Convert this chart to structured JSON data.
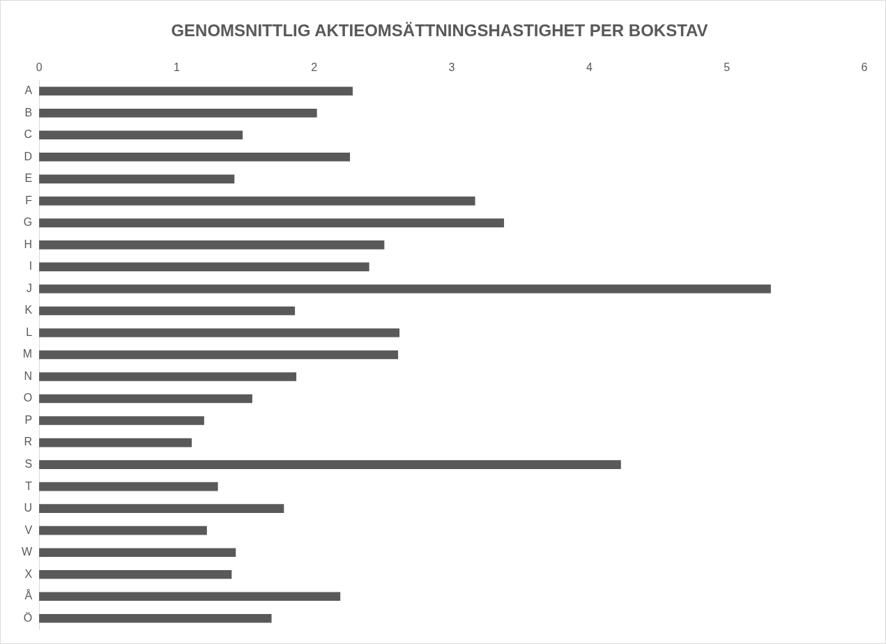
{
  "chart_data": {
    "type": "bar",
    "orientation": "horizontal",
    "title": "GENOMSNITTLIG AKTIEOMSÄTTNINGSHASTIGHET PER BOKSTAV",
    "categories": [
      "A",
      "B",
      "C",
      "D",
      "E",
      "F",
      "G",
      "H",
      "I",
      "J",
      "K",
      "L",
      "M",
      "N",
      "O",
      "P",
      "R",
      "S",
      "T",
      "U",
      "V",
      "W",
      "X",
      "Å",
      "Ö"
    ],
    "values": [
      2.28,
      2.02,
      1.48,
      2.26,
      1.42,
      3.17,
      3.38,
      2.51,
      2.4,
      5.32,
      1.86,
      2.62,
      2.61,
      1.87,
      1.55,
      1.2,
      1.11,
      4.23,
      1.3,
      1.78,
      1.22,
      1.43,
      1.4,
      2.19,
      1.69
    ],
    "color": "#595959",
    "xlim": [
      0,
      6
    ],
    "xticks": [
      0,
      1,
      2,
      3,
      4,
      5,
      6
    ],
    "grid": false,
    "legend": false
  }
}
